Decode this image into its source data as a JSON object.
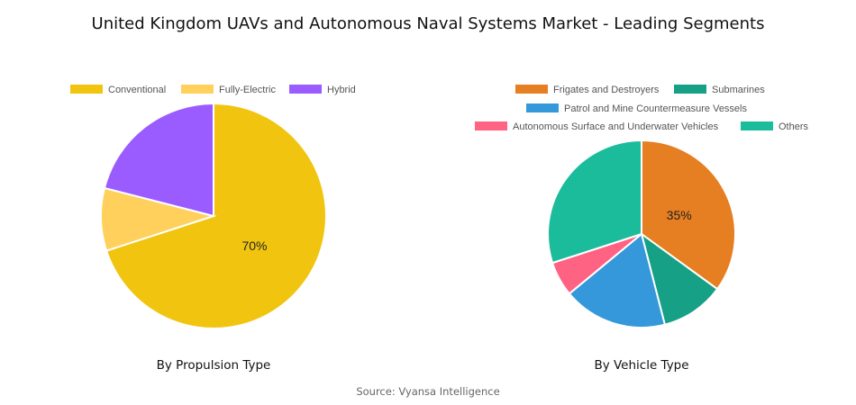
{
  "title": "United Kingdom UAVs and Autonomous Naval Systems Market - Leading Segments",
  "source": "Source: Vyansa Intelligence",
  "chart_data": [
    {
      "type": "pie",
      "caption": "By Propulsion Type",
      "slices": [
        {
          "name": "Conventional",
          "value": 70,
          "color": "#F1C40F",
          "label": "70%"
        },
        {
          "name": "Fully-Electric",
          "value": 9,
          "color": "#FFD05C",
          "label": ""
        },
        {
          "name": "Hybrid",
          "value": 21,
          "color": "#9B5CFF",
          "label": ""
        }
      ],
      "legend_position": "top"
    },
    {
      "type": "pie",
      "caption": "By Vehicle Type",
      "slices": [
        {
          "name": "Frigates and Destroyers",
          "value": 35,
          "color": "#E67E22",
          "label": "35%"
        },
        {
          "name": "Submarines",
          "value": 11,
          "color": "#16A085",
          "label": ""
        },
        {
          "name": "Patrol and Mine Countermeasure Vessels",
          "value": 18,
          "color": "#3498DB",
          "label": ""
        },
        {
          "name": "Autonomous Surface and Underwater Vehicles",
          "value": 6,
          "color": "#FF6384",
          "label": ""
        },
        {
          "name": "Others",
          "value": 30,
          "color": "#1ABC9C",
          "label": ""
        }
      ],
      "legend_position": "top"
    }
  ]
}
